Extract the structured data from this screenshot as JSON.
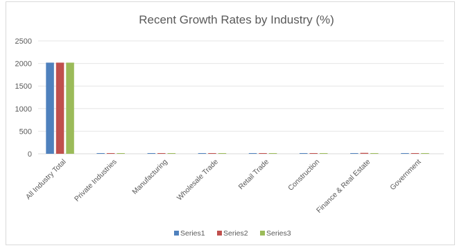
{
  "chart_data": {
    "type": "bar",
    "title": "Recent Growth Rates by Industry (%)",
    "xlabel": "",
    "ylabel": "",
    "ylim": [
      0,
      2500
    ],
    "yticks": [
      0,
      500,
      1000,
      1500,
      2000,
      2500
    ],
    "grid": true,
    "legend_position": "bottom",
    "categories": [
      "All Industry Total",
      "Private Industries",
      "Manufacturing",
      "Wholesale Trade",
      "Retail Trade",
      "Construction",
      "Finance & Real Estate",
      "Government"
    ],
    "series": [
      {
        "name": "Series1",
        "color": "#4f81bd",
        "values": [
          2018,
          4,
          5,
          6,
          9,
          3,
          10,
          5
        ]
      },
      {
        "name": "Series2",
        "color": "#c0504d",
        "values": [
          2018,
          3,
          4,
          3,
          8,
          8,
          20,
          4
        ]
      },
      {
        "name": "Series3",
        "color": "#9bbb59",
        "values": [
          2018,
          2,
          2,
          2,
          3,
          2,
          5,
          4
        ]
      }
    ]
  }
}
